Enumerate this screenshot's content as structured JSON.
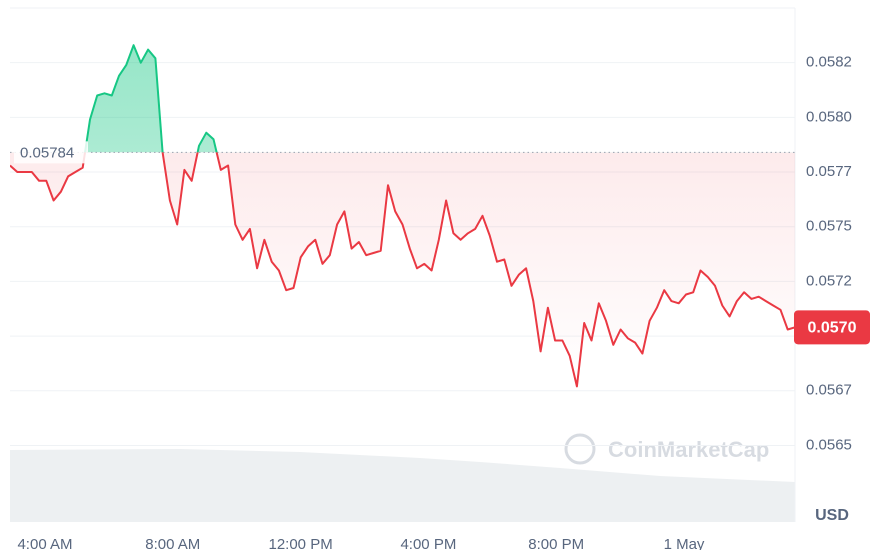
{
  "chart_data": {
    "type": "line",
    "series": [
      {
        "name": "Price",
        "color": "#ea3943",
        "up_color": "#16c784",
        "values": [
          0.05778,
          0.05775,
          0.05775,
          0.05775,
          0.05771,
          0.05771,
          0.05762,
          0.05766,
          0.05773,
          0.05775,
          0.05777,
          0.05799,
          0.0581,
          0.05811,
          0.0581,
          0.05819,
          0.05824,
          0.05833,
          0.05825,
          0.05831,
          0.05827,
          0.05784,
          0.05762,
          0.05751,
          0.05776,
          0.05771,
          0.05787,
          0.05793,
          0.0579,
          0.05776,
          0.05778,
          0.05751,
          0.05744,
          0.05749,
          0.05731,
          0.05744,
          0.05734,
          0.0573,
          0.05721,
          0.05722,
          0.05736,
          0.05741,
          0.05744,
          0.05733,
          0.05737,
          0.05751,
          0.05757,
          0.0574,
          0.05743,
          0.05737,
          0.05738,
          0.05739,
          0.05769,
          0.05757,
          0.05751,
          0.0574,
          0.05731,
          0.05733,
          0.0573,
          0.05744,
          0.05762,
          0.05747,
          0.05744,
          0.05747,
          0.05749,
          0.05755,
          0.05746,
          0.05734,
          0.05735,
          0.05723,
          0.05728,
          0.05731,
          0.05716,
          0.05693,
          0.05713,
          0.05698,
          0.05698,
          0.05691,
          0.05677,
          0.05706,
          0.05698,
          0.05715,
          0.05707,
          0.05696,
          0.05703,
          0.05699,
          0.05697,
          0.05692,
          0.05707,
          0.05713,
          0.05721,
          0.05716,
          0.05715,
          0.05719,
          0.0572,
          0.0573,
          0.05727,
          0.05723,
          0.05714,
          0.05709,
          0.05716,
          0.0572,
          0.05717,
          0.05718,
          0.05716,
          0.05714,
          0.05712,
          0.05703,
          0.05704
        ]
      }
    ],
    "reference": 0.05784,
    "current_price": {
      "value": 0.05704,
      "label": "0.0570"
    },
    "x_tick_labels": [
      "4:00 AM",
      "8:00 AM",
      "12:00 PM",
      "4:00 PM",
      "8:00 PM",
      "1 May"
    ],
    "ylim": [
      0.05615,
      0.0585
    ],
    "yticks": [
      {
        "value": 0.0565,
        "label": "0.0565"
      },
      {
        "value": 0.05675,
        "label": "0.0567"
      },
      {
        "value": 0.057,
        "label": "0.0570"
      },
      {
        "value": 0.05725,
        "label": "0.0572"
      },
      {
        "value": 0.0575,
        "label": "0.0575"
      },
      {
        "value": 0.05775,
        "label": "0.0577"
      },
      {
        "value": 0.058,
        "label": "0.0580"
      },
      {
        "value": 0.05825,
        "label": "0.0582"
      }
    ],
    "currency": "USD",
    "watermark": "CoinMarketCap",
    "grid": true
  }
}
